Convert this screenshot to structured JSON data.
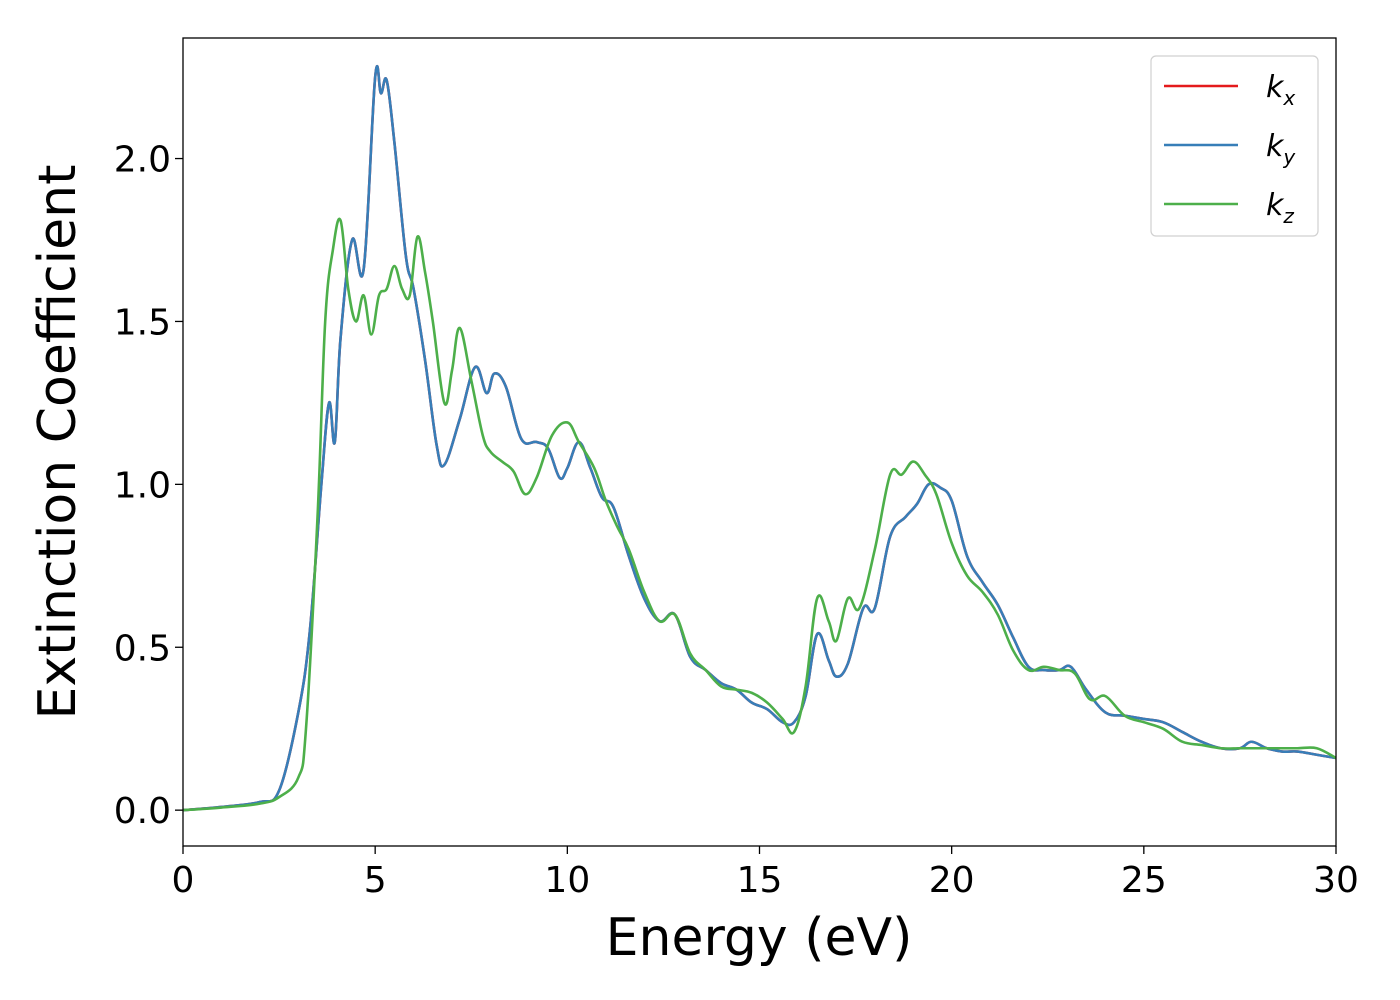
{
  "chart_data": {
    "type": "line",
    "title": "",
    "xlabel": "Energy (eV)",
    "ylabel": "Extinction Coefficient",
    "xlim": [
      0,
      30
    ],
    "ylim": [
      -0.11,
      2.37
    ],
    "xticks": [
      0,
      5,
      10,
      15,
      20,
      25,
      30
    ],
    "xtick_labels": [
      "0",
      "5",
      "10",
      "15",
      "20",
      "25",
      "30"
    ],
    "yticks": [
      0.0,
      0.5,
      1.0,
      1.5,
      2.0
    ],
    "ytick_labels": [
      "0.0",
      "0.5",
      "1.0",
      "1.5",
      "2.0"
    ],
    "grid": false,
    "legend": {
      "position": "top-right",
      "entries": [
        {
          "base": "k",
          "sub": "x",
          "color": "#e41a1c"
        },
        {
          "base": "k",
          "sub": "y",
          "color": "#377eb8"
        },
        {
          "base": "k",
          "sub": "z",
          "color": "#4daf4a"
        }
      ]
    },
    "series": [
      {
        "name": "k_x",
        "color": "#e41a1c",
        "x": [
          0,
          1,
          2,
          2.5,
          3,
          3.3,
          3.6,
          3.8,
          3.95,
          4.1,
          4.4,
          4.7,
          5.0,
          5.15,
          5.3,
          5.5,
          5.8,
          6.0,
          6.3,
          6.6,
          6.8,
          7.2,
          7.6,
          7.9,
          8.1,
          8.4,
          8.8,
          9.2,
          9.5,
          9.8,
          10.0,
          10.3,
          10.6,
          10.9,
          11.2,
          11.6,
          12.0,
          12.4,
          12.8,
          13.2,
          13.6,
          14.0,
          14.4,
          14.8,
          15.2,
          15.6,
          15.9,
          16.2,
          16.5,
          16.8,
          17.0,
          17.3,
          17.7,
          18.0,
          18.4,
          18.8,
          19.1,
          19.4,
          19.7,
          20.0,
          20.4,
          20.8,
          21.2,
          21.6,
          22.0,
          22.4,
          22.8,
          23.1,
          23.5,
          24.0,
          24.5,
          25.0,
          25.5,
          26.0,
          26.5,
          27.0,
          27.5,
          27.8,
          28.2,
          28.6,
          29.0,
          29.5,
          30.0
        ],
        "y": [
          0.0,
          0.01,
          0.025,
          0.06,
          0.3,
          0.55,
          1.0,
          1.25,
          1.13,
          1.45,
          1.75,
          1.66,
          2.25,
          2.2,
          2.24,
          2.05,
          1.7,
          1.6,
          1.38,
          1.12,
          1.06,
          1.2,
          1.36,
          1.28,
          1.34,
          1.3,
          1.14,
          1.13,
          1.11,
          1.02,
          1.05,
          1.13,
          1.05,
          0.96,
          0.93,
          0.78,
          0.65,
          0.58,
          0.6,
          0.47,
          0.43,
          0.39,
          0.37,
          0.33,
          0.31,
          0.27,
          0.27,
          0.35,
          0.54,
          0.46,
          0.41,
          0.45,
          0.62,
          0.62,
          0.84,
          0.9,
          0.94,
          1.0,
          0.99,
          0.95,
          0.78,
          0.7,
          0.63,
          0.53,
          0.44,
          0.43,
          0.43,
          0.44,
          0.37,
          0.3,
          0.29,
          0.28,
          0.27,
          0.24,
          0.21,
          0.19,
          0.19,
          0.21,
          0.19,
          0.18,
          0.18,
          0.17,
          0.16
        ]
      },
      {
        "name": "k_y",
        "color": "#377eb8",
        "x": [
          0,
          1,
          2,
          2.5,
          3,
          3.3,
          3.6,
          3.8,
          3.95,
          4.1,
          4.4,
          4.7,
          5.0,
          5.15,
          5.3,
          5.5,
          5.8,
          6.0,
          6.3,
          6.6,
          6.8,
          7.2,
          7.6,
          7.9,
          8.1,
          8.4,
          8.8,
          9.2,
          9.5,
          9.8,
          10.0,
          10.3,
          10.6,
          10.9,
          11.2,
          11.6,
          12.0,
          12.4,
          12.8,
          13.2,
          13.6,
          14.0,
          14.4,
          14.8,
          15.2,
          15.6,
          15.9,
          16.2,
          16.5,
          16.8,
          17.0,
          17.3,
          17.7,
          18.0,
          18.4,
          18.8,
          19.1,
          19.4,
          19.7,
          20.0,
          20.4,
          20.8,
          21.2,
          21.6,
          22.0,
          22.4,
          22.8,
          23.1,
          23.5,
          24.0,
          24.5,
          25.0,
          25.5,
          26.0,
          26.5,
          27.0,
          27.5,
          27.8,
          28.2,
          28.6,
          29.0,
          29.5,
          30.0
        ],
        "y": [
          0.0,
          0.01,
          0.025,
          0.06,
          0.3,
          0.55,
          1.0,
          1.25,
          1.13,
          1.45,
          1.75,
          1.66,
          2.25,
          2.2,
          2.24,
          2.05,
          1.7,
          1.6,
          1.38,
          1.12,
          1.06,
          1.2,
          1.36,
          1.28,
          1.34,
          1.3,
          1.14,
          1.13,
          1.11,
          1.02,
          1.05,
          1.13,
          1.05,
          0.96,
          0.93,
          0.78,
          0.65,
          0.58,
          0.6,
          0.47,
          0.43,
          0.39,
          0.37,
          0.33,
          0.31,
          0.27,
          0.27,
          0.35,
          0.54,
          0.46,
          0.41,
          0.45,
          0.62,
          0.62,
          0.84,
          0.9,
          0.94,
          1.0,
          0.99,
          0.95,
          0.78,
          0.7,
          0.63,
          0.53,
          0.44,
          0.43,
          0.43,
          0.44,
          0.37,
          0.3,
          0.29,
          0.28,
          0.27,
          0.24,
          0.21,
          0.19,
          0.19,
          0.21,
          0.19,
          0.18,
          0.18,
          0.17,
          0.16
        ]
      },
      {
        "name": "k_z",
        "color": "#4daf4a",
        "x": [
          0,
          1,
          2,
          2.5,
          3,
          3.2,
          3.5,
          3.7,
          3.9,
          4.1,
          4.3,
          4.5,
          4.7,
          4.9,
          5.1,
          5.3,
          5.5,
          5.7,
          5.9,
          6.1,
          6.3,
          6.5,
          6.8,
          7.0,
          7.2,
          7.5,
          7.8,
          8.0,
          8.3,
          8.6,
          8.9,
          9.2,
          9.6,
          10.0,
          10.3,
          10.7,
          11.0,
          11.3,
          11.6,
          12.0,
          12.4,
          12.8,
          13.2,
          13.6,
          14.0,
          14.4,
          14.8,
          15.2,
          15.6,
          15.9,
          16.2,
          16.5,
          16.8,
          17.0,
          17.3,
          17.6,
          18.0,
          18.4,
          18.7,
          19.0,
          19.3,
          19.6,
          20.0,
          20.4,
          20.8,
          21.2,
          21.6,
          22.0,
          22.4,
          22.8,
          23.2,
          23.6,
          24.0,
          24.5,
          25.0,
          25.5,
          26.0,
          26.5,
          27.0,
          27.5,
          28.0,
          28.5,
          29.0,
          29.5,
          30.0
        ],
        "y": [
          0.0,
          0.008,
          0.02,
          0.04,
          0.1,
          0.25,
          0.9,
          1.5,
          1.72,
          1.81,
          1.6,
          1.5,
          1.58,
          1.46,
          1.58,
          1.6,
          1.67,
          1.6,
          1.58,
          1.76,
          1.65,
          1.5,
          1.25,
          1.35,
          1.48,
          1.32,
          1.15,
          1.1,
          1.07,
          1.04,
          0.97,
          1.02,
          1.15,
          1.19,
          1.13,
          1.05,
          0.95,
          0.87,
          0.8,
          0.67,
          0.58,
          0.6,
          0.48,
          0.43,
          0.38,
          0.37,
          0.36,
          0.33,
          0.28,
          0.24,
          0.38,
          0.65,
          0.58,
          0.52,
          0.65,
          0.62,
          0.8,
          1.03,
          1.03,
          1.07,
          1.03,
          0.97,
          0.82,
          0.72,
          0.67,
          0.6,
          0.49,
          0.43,
          0.44,
          0.43,
          0.42,
          0.34,
          0.35,
          0.29,
          0.27,
          0.25,
          0.21,
          0.2,
          0.19,
          0.19,
          0.19,
          0.19,
          0.19,
          0.19,
          0.16
        ]
      }
    ]
  }
}
